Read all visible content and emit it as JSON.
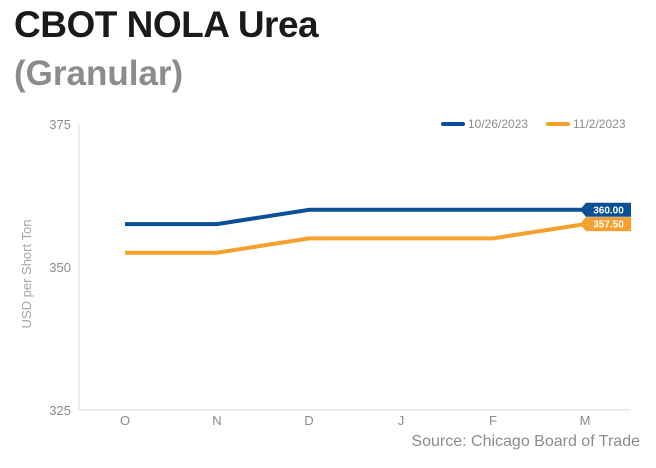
{
  "title": "CBOT NOLA Urea",
  "subtitle": "(Granular)",
  "source": "Source: Chicago Board of Trade",
  "colors": {
    "series1": "#0b4f96",
    "series2": "#f5a130",
    "axis": "#d9d9d9",
    "tick_text": "#8c8c8c"
  },
  "chart_data": {
    "type": "line",
    "categories": [
      "O",
      "N",
      "D",
      "J",
      "F",
      "M"
    ],
    "ylabel": "USD per Short Ton",
    "ylim": [
      325,
      375
    ],
    "yticks": [
      "375",
      "350",
      "325"
    ],
    "grid": false,
    "legend_position": "top-right",
    "series": [
      {
        "name": "10/26/2023",
        "values": [
          357.5,
          357.5,
          360.0,
          360.0,
          360.0,
          360.0
        ],
        "end_label": "360.00"
      },
      {
        "name": "11/2/2023",
        "values": [
          352.5,
          352.5,
          355.0,
          355.0,
          355.0,
          357.5
        ],
        "end_label": "357.50"
      }
    ]
  }
}
